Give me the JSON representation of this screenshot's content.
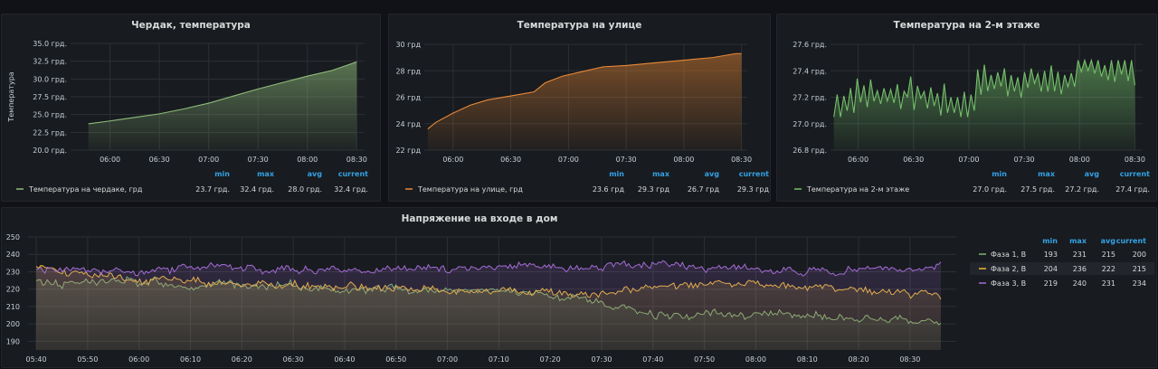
{
  "panels": [
    {
      "title": "Чердак, температура",
      "ylabel": "Температура",
      "color": "#8fbc7a",
      "fill_top": "#8fbc7a",
      "legend": {
        "label": "Температура на чердаке, грд",
        "min": "23.7 грд.",
        "max": "32.4 грд.",
        "avg": "28.0 грд.",
        "current": "32.4 грд."
      },
      "chart": {
        "type": "area",
        "ylim": [
          20,
          35
        ],
        "yticks": [
          "20.0 грд.",
          "22.5 грд.",
          "25.0 грд.",
          "27.5 грд.",
          "30.0 грд.",
          "32.5 грд.",
          "35.0 грд."
        ],
        "xticks": [
          "06:00",
          "06:30",
          "07:00",
          "07:30",
          "08:00",
          "08:30"
        ],
        "x": [
          5.78,
          6.0,
          6.25,
          6.5,
          6.75,
          7.0,
          7.25,
          7.5,
          7.75,
          8.0,
          8.25,
          8.5
        ],
        "values": [
          23.7,
          24.1,
          24.6,
          25.1,
          25.8,
          26.6,
          27.6,
          28.6,
          29.5,
          30.4,
          31.2,
          32.4
        ]
      }
    },
    {
      "title": "Температура на улице",
      "ylabel": "",
      "color": "#e8893a",
      "fill_top": "#c9772f",
      "legend": {
        "label": "Температура на улице, грд",
        "min": "23.6 грд",
        "max": "29.3 грд",
        "avg": "26.7 грд",
        "current": "29.3 грд"
      },
      "chart": {
        "type": "area",
        "ylim": [
          22,
          30
        ],
        "yticks": [
          "22 грд",
          "24 грд",
          "26 грд",
          "28 грд",
          "30 грд"
        ],
        "xticks": [
          "06:00",
          "06:30",
          "07:00",
          "07:30",
          "08:00",
          "08:30"
        ],
        "x": [
          5.78,
          5.85,
          6.0,
          6.15,
          6.3,
          6.5,
          6.7,
          6.8,
          6.95,
          7.1,
          7.3,
          7.5,
          7.75,
          8.0,
          8.25,
          8.45,
          8.5
        ],
        "values": [
          23.6,
          24.1,
          24.8,
          25.4,
          25.8,
          26.1,
          26.4,
          27.1,
          27.6,
          27.9,
          28.3,
          28.4,
          28.6,
          28.8,
          29.0,
          29.3,
          29.3
        ]
      }
    },
    {
      "title": "Температура на 2-м этаже",
      "ylabel": "",
      "color": "#73bf69",
      "fill_top": "#73bf69",
      "legend": {
        "label": "Температура на 2-м этаже",
        "min": "27.0 грд.",
        "max": "27.5 грд.",
        "avg": "27.2 грд.",
        "current": "27.4 грд."
      },
      "chart": {
        "type": "line",
        "ylim": [
          26.8,
          27.6
        ],
        "yticks": [
          "26.8 грд.",
          "27.0 грд.",
          "27.2 грд.",
          "27.4 грд.",
          "27.6 грд."
        ],
        "xticks": [
          "06:00",
          "06:30",
          "07:00",
          "07:30",
          "08:00",
          "08:30"
        ],
        "x": [
          5.78,
          6.0,
          6.5,
          7.0,
          7.1,
          7.5,
          7.9,
          8.0,
          8.5
        ],
        "values": [
          27.1,
          27.2,
          27.2,
          27.1,
          27.3,
          27.3,
          27.3,
          27.4,
          27.4
        ]
      }
    }
  ],
  "voltage": {
    "title": "Напряжение на входе в дом",
    "legend_heads": {
      "min": "min",
      "max": "max",
      "avg": "avg",
      "current": "current"
    },
    "series": [
      {
        "name": "Фаза 1, В",
        "color": "#7eb26d",
        "min": "193",
        "max": "231",
        "avg": "215",
        "current": "200"
      },
      {
        "name": "Фаза 2, В",
        "color": "#eab839",
        "min": "204",
        "max": "236",
        "avg": "222",
        "current": "215"
      },
      {
        "name": "Фаза 3, В",
        "color": "#a36bd6",
        "min": "219",
        "max": "240",
        "avg": "231",
        "current": "234"
      }
    ],
    "chart": {
      "type": "line",
      "ylim": [
        185,
        250
      ],
      "yticks": [
        "190",
        "200",
        "210",
        "220",
        "230",
        "240",
        "250"
      ],
      "xticks": [
        "05:40",
        "05:50",
        "06:00",
        "06:10",
        "06:20",
        "06:30",
        "06:40",
        "06:50",
        "07:00",
        "07:10",
        "07:20",
        "07:30",
        "07:40",
        "07:50",
        "08:00",
        "08:10",
        "08:20",
        "08:30"
      ],
      "x": [
        5.667,
        6.0,
        6.333,
        6.667,
        7.0,
        7.333,
        7.5,
        7.667,
        8.0,
        8.333,
        8.6
      ],
      "series_values": [
        [
          224,
          224,
          222,
          220,
          220,
          216,
          212,
          205,
          206,
          203,
          200
        ],
        [
          232,
          226,
          222,
          221,
          220,
          219,
          218,
          220,
          223,
          220,
          215
        ],
        [
          232,
          230,
          232,
          231,
          232,
          233,
          232,
          234,
          231,
          230,
          234
        ]
      ]
    }
  },
  "labels": {
    "min": "min",
    "max": "max",
    "avg": "avg",
    "current": "current"
  }
}
